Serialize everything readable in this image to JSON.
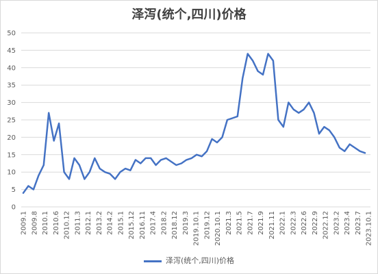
{
  "chart_data": {
    "type": "line",
    "title": "泽泻(统个,四川)价格",
    "ylim": [
      0,
      50
    ],
    "yticks": [
      0,
      5,
      10,
      15,
      20,
      25,
      30,
      35,
      40,
      45,
      50
    ],
    "grid": true,
    "legend_position": "bottom",
    "x_tick_labels": [
      "2009.1",
      "2009.8",
      "2010.1",
      "2010.6",
      "2010.12",
      "2011.3",
      "2012.1",
      "2013.2",
      "2014.2",
      "2015.1",
      "2015.12",
      "2016.11",
      "2017.4",
      "2018.2",
      "2018.12",
      "2019.3",
      "2019.10.1",
      "2019.12",
      "2020.10.1",
      "2021.3",
      "2021.5",
      "2021.7",
      "2021.9",
      "2021.11",
      "2022.1",
      "2022.3",
      "2022.6",
      "2022.9",
      "2022.12",
      "2023.2",
      "2023.4",
      "2023.7",
      "2023.10.1"
    ],
    "series": [
      {
        "name": "泽泻(统个,四川)价格",
        "color": "#4472c4",
        "values": [
          4,
          6,
          5,
          9,
          12,
          27,
          19,
          24,
          10,
          8,
          14,
          12,
          8,
          10,
          14,
          11,
          10,
          9.5,
          8,
          10,
          11,
          10.5,
          13.5,
          12.5,
          14,
          14,
          12,
          13.5,
          14,
          13,
          12,
          12.5,
          13.5,
          14,
          15,
          14.5,
          16,
          19.5,
          18.5,
          20,
          25,
          25.5,
          26,
          37,
          44,
          42,
          39,
          38,
          44,
          42,
          25,
          23,
          30,
          28,
          27,
          28,
          30,
          27,
          21,
          23,
          22,
          20,
          17,
          16,
          18,
          17,
          16,
          15.5
        ]
      }
    ]
  },
  "legend": {
    "label": "泽泻(统个,四川)价格"
  }
}
